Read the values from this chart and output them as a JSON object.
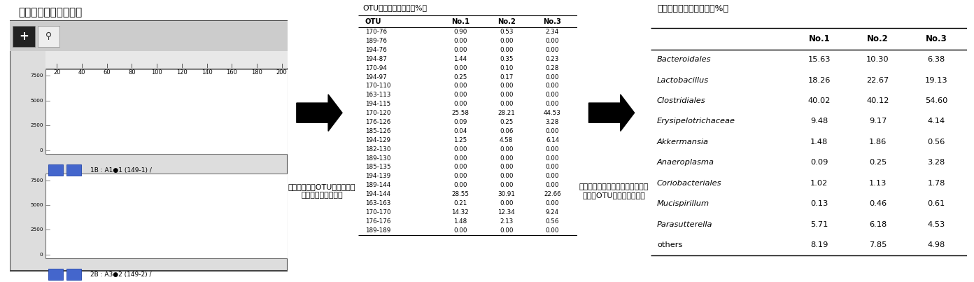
{
  "title_left": "（電気泳動像の一例）",
  "electro_xlabel_values": [
    20,
    40,
    60,
    80,
    100,
    120,
    140,
    160,
    180,
    200
  ],
  "electro_ylabel_values": [
    0,
    2500,
    5000,
    7500
  ],
  "trace1_label": "1B : A1●1 (149-1) /",
  "trace2_label": "2B : A3●2 (149-2) /",
  "otu_title": "OTUのピーク面積比（%）",
  "otu_headers": [
    "OTU",
    "No.1",
    "No.2",
    "No.3"
  ],
  "otu_rows": [
    [
      "170-76",
      "0.90",
      "0.53",
      "2.34"
    ],
    [
      "189-76",
      "0.00",
      "0.00",
      "0.00"
    ],
    [
      "194-76",
      "0.00",
      "0.00",
      "0.00"
    ],
    [
      "194-87",
      "1.44",
      "0.35",
      "0.23"
    ],
    [
      "170-94",
      "0.00",
      "0.10",
      "0.28"
    ],
    [
      "194-97",
      "0.25",
      "0.17",
      "0.00"
    ],
    [
      "170-110",
      "0.00",
      "0.00",
      "0.00"
    ],
    [
      "163-113",
      "0.00",
      "0.00",
      "0.00"
    ],
    [
      "194-115",
      "0.00",
      "0.00",
      "0.00"
    ],
    [
      "170-120",
      "25.58",
      "28.21",
      "44.53"
    ],
    [
      "176-126",
      "0.09",
      "0.25",
      "3.28"
    ],
    [
      "185-126",
      "0.04",
      "0.06",
      "0.00"
    ],
    [
      "194-129",
      "1.25",
      "4.58",
      "6.14"
    ],
    [
      "182-130",
      "0.00",
      "0.00",
      "0.00"
    ],
    [
      "189-130",
      "0.00",
      "0.00",
      "0.00"
    ],
    [
      "185-135",
      "0.00",
      "0.00",
      "0.00"
    ],
    [
      "194-139",
      "0.00",
      "0.00",
      "0.00"
    ],
    [
      "189-144",
      "0.00",
      "0.00",
      "0.00"
    ],
    [
      "194-144",
      "28.55",
      "30.91",
      "22.66"
    ],
    [
      "163-163",
      "0.21",
      "0.00",
      "0.00"
    ],
    [
      "170-170",
      "14.32",
      "12.34",
      "9.24"
    ],
    [
      "176-176",
      "1.48",
      "2.13",
      "0.56"
    ],
    [
      "189-189",
      "0.00",
      "0.00",
      "0.00"
    ]
  ],
  "arrow1_text": "検出ピークをOTUにまとめ、\nピーク面積比を算出",
  "bacteria_title": "推定菌群ピーク面積比（%）",
  "bacteria_headers": [
    "",
    "No.1",
    "No.2",
    "No.3"
  ],
  "bacteria_rows": [
    [
      "Bacteroidales",
      "15.63",
      "10.30",
      "6.38"
    ],
    [
      "Lactobacillus",
      "18.26",
      "22.67",
      "19.13"
    ],
    [
      "Clostridiales",
      "40.02",
      "40.12",
      "54.60"
    ],
    [
      "Erysipelotrichaceae",
      "9.48",
      "9.17",
      "4.14"
    ],
    [
      "Akkermansia",
      "1.48",
      "1.86",
      "0.56"
    ],
    [
      "Anaeroplasma",
      "0.09",
      "0.25",
      "3.28"
    ],
    [
      "Coriobacteriales",
      "1.02",
      "1.13",
      "1.78"
    ],
    [
      "Mucispirillum",
      "0.13",
      "0.46",
      "0.61"
    ],
    [
      "Parasutterella",
      "5.71",
      "6.18",
      "4.53"
    ],
    [
      "others",
      "8.19",
      "7.85",
      "4.98"
    ]
  ],
  "arrow2_text": "マウス腐内細菌叢データベースに\n基づきOTUから菌群を推定",
  "line_color": "#3355BB",
  "bg_color": "#FFFFFF",
  "panel_bg": "#DDDDDD",
  "toolbar_bg": "#CCCCCC",
  "border_color": "#444444"
}
